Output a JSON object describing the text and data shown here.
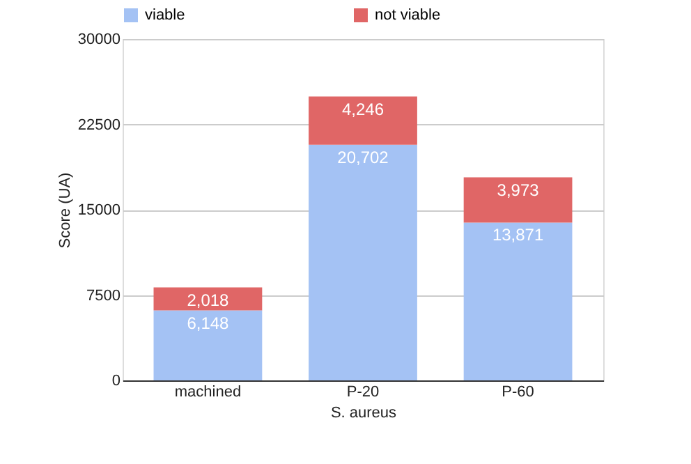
{
  "chart_data": {
    "type": "bar",
    "stacked": true,
    "xlabel": "S. aureus",
    "ylabel": "Score (UA)",
    "categories": [
      "machined",
      "P-20",
      "P-60"
    ],
    "series": [
      {
        "name": "viable",
        "color": "#a4c2f4",
        "values": [
          6148,
          20702,
          13871
        ],
        "value_labels": [
          "6,148",
          "20,702",
          "13,871"
        ]
      },
      {
        "name": "not viable",
        "color": "#e06666",
        "values": [
          2018,
          4246,
          3973
        ],
        "value_labels": [
          "2,018",
          "4,246",
          "3,973"
        ]
      }
    ],
    "ylim": [
      0,
      30000
    ],
    "yticks": [
      0,
      7500,
      15000,
      22500,
      30000
    ],
    "grid": "y",
    "legend": "top"
  }
}
